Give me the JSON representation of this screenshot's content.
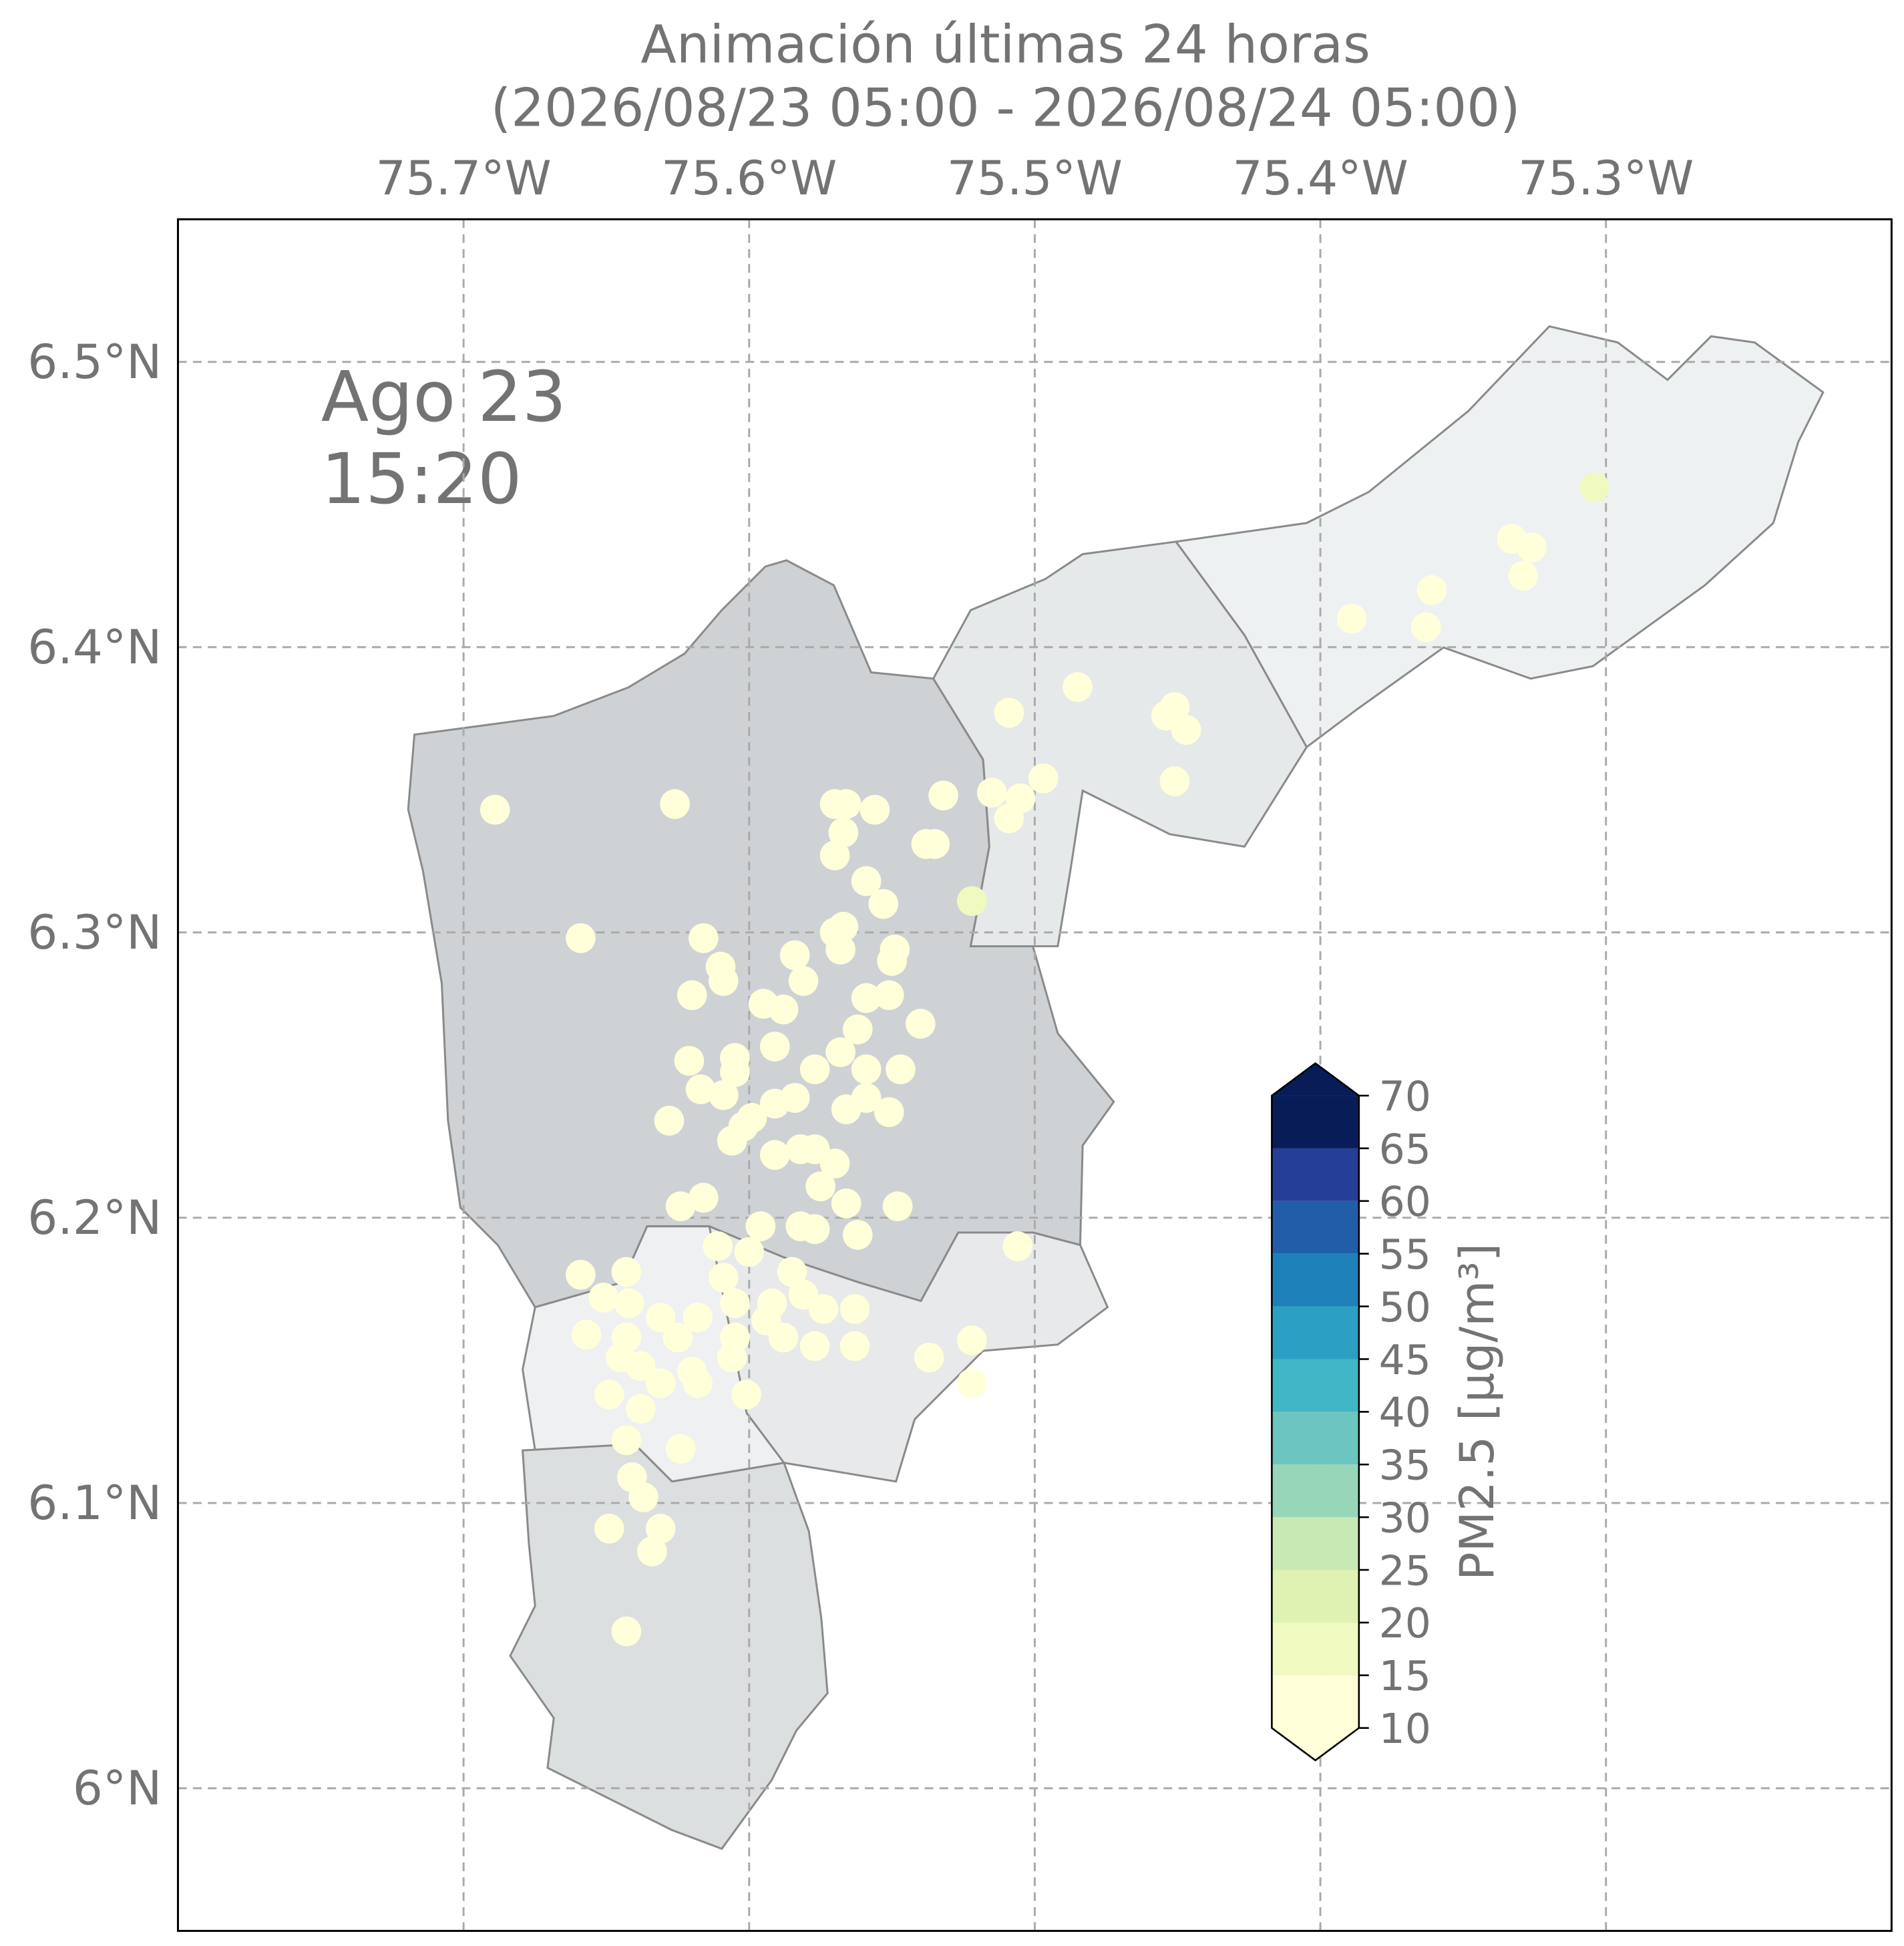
{
  "chart_data": {
    "type": "scatter",
    "title": "Animación últimas 24 horas",
    "subtitle": "(2026/08/23 05:00 - 2026/08/24 05:00)",
    "annotation": [
      "Ago 23",
      "15:20"
    ],
    "xlim": [
      -75.8,
      -75.2
    ],
    "ylim": [
      5.95,
      6.55
    ],
    "xticks": [
      {
        "value": -75.7,
        "label": "75.7°W"
      },
      {
        "value": -75.6,
        "label": "75.6°W"
      },
      {
        "value": -75.5,
        "label": "75.5°W"
      },
      {
        "value": -75.4,
        "label": "75.4°W"
      },
      {
        "value": -75.3,
        "label": "75.3°W"
      }
    ],
    "yticks": [
      {
        "value": 6.0,
        "label": "6°N"
      },
      {
        "value": 6.1,
        "label": "6.1°N"
      },
      {
        "value": 6.2,
        "label": "6.2°N"
      },
      {
        "value": 6.3,
        "label": "6.3°N"
      },
      {
        "value": 6.4,
        "label": "6.4°N"
      },
      {
        "value": 6.5,
        "label": "6.5°N"
      }
    ],
    "grid": true,
    "x": [
      -75.689,
      -75.626,
      -75.659,
      -75.57,
      -75.566,
      -75.556,
      -75.567,
      -75.57,
      -75.532,
      -75.538,
      -75.535,
      -75.515,
      -75.509,
      -75.505,
      -75.497,
      -75.509,
      -75.485,
      -75.522,
      -75.451,
      -75.454,
      -75.447,
      -75.451,
      -75.389,
      -75.363,
      -75.361,
      -75.333,
      -75.326,
      -75.329,
      -75.304,
      -75.559,
      -75.553,
      -75.57,
      -75.567,
      -75.568,
      -75.549,
      -75.55,
      -75.616,
      -75.61,
      -75.609,
      -75.62,
      -75.584,
      -75.581,
      -75.595,
      -75.588,
      -75.559,
      -75.551,
      -75.54,
      -75.562,
      -75.591,
      -75.605,
      -75.621,
      -75.605,
      -75.577,
      -75.568,
      -75.559,
      -75.547,
      -75.617,
      -75.609,
      -75.591,
      -75.584,
      -75.566,
      -75.559,
      -75.551,
      -75.628,
      -75.602,
      -75.599,
      -75.606,
      -75.591,
      -75.582,
      -75.577,
      -75.57,
      -75.575,
      -75.566,
      -75.548,
      -75.616,
      -75.624,
      -75.596,
      -75.582,
      -75.577,
      -75.562,
      -75.611,
      -75.6,
      -75.506,
      -75.659,
      -75.643,
      -75.609,
      -75.585,
      -75.651,
      -75.642,
      -75.605,
      -75.592,
      -75.581,
      -75.574,
      -75.563,
      -75.631,
      -75.618,
      -75.594,
      -75.657,
      -75.643,
      -75.625,
      -75.605,
      -75.588,
      -75.577,
      -75.563,
      -75.645,
      -75.638,
      -75.62,
      -75.606,
      -75.537,
      -75.522,
      -75.649,
      -75.631,
      -75.618,
      -75.601,
      -75.638,
      -75.522,
      -75.643,
      -75.624,
      -75.641,
      -75.637,
      -75.649,
      -75.631,
      -75.634,
      -75.643
    ],
    "y": [
      6.343,
      6.345,
      6.298,
      6.345,
      6.345,
      6.343,
      6.335,
      6.327,
      6.348,
      6.331,
      6.331,
      6.349,
      6.34,
      6.347,
      6.354,
      6.377,
      6.386,
      6.311,
      6.379,
      6.376,
      6.371,
      6.353,
      6.41,
      6.407,
      6.42,
      6.438,
      6.435,
      6.425,
      6.456,
      6.318,
      6.31,
      6.3,
      6.302,
      6.294,
      6.294,
      6.29,
      6.298,
      6.288,
      6.283,
      6.278,
      6.292,
      6.283,
      6.275,
      6.273,
      6.277,
      6.278,
      6.268,
      6.266,
      6.26,
      6.256,
      6.255,
      6.251,
      6.252,
      6.258,
      6.252,
      6.252,
      6.245,
      6.243,
      6.24,
      6.242,
      6.238,
      6.242,
      6.237,
      6.234,
      6.232,
      6.235,
      6.227,
      6.222,
      6.224,
      6.224,
      6.219,
      6.211,
      6.205,
      6.204,
      6.207,
      6.204,
      6.197,
      6.197,
      6.196,
      6.194,
      6.19,
      6.188,
      6.19,
      6.18,
      6.181,
      6.179,
      6.181,
      6.172,
      6.17,
      6.17,
      6.17,
      6.173,
      6.168,
      6.168,
      6.165,
      6.165,
      6.164,
      6.159,
      6.158,
      6.158,
      6.158,
      6.158,
      6.155,
      6.155,
      6.151,
      6.148,
      6.146,
      6.151,
      6.151,
      6.157,
      6.138,
      6.142,
      6.142,
      6.138,
      6.133,
      6.142,
      6.122,
      6.119,
      6.109,
      6.102,
      6.091,
      6.091,
      6.083,
      6.055
    ],
    "values": [
      12,
      12,
      12,
      12,
      12,
      12,
      12,
      12,
      12,
      12,
      12,
      12,
      12,
      12,
      12,
      12,
      12,
      17,
      12,
      12,
      12,
      12,
      12,
      12,
      12,
      12,
      12,
      12,
      17,
      12,
      12,
      12,
      12,
      12,
      12,
      12,
      12,
      12,
      12,
      12,
      12,
      12,
      12,
      12,
      12,
      12,
      12,
      12,
      12,
      12,
      12,
      12,
      12,
      12,
      12,
      12,
      12,
      12,
      12,
      12,
      12,
      12,
      12,
      12,
      12,
      12,
      12,
      12,
      12,
      12,
      12,
      12,
      12,
      12,
      12,
      12,
      12,
      12,
      12,
      12,
      12,
      12,
      12,
      12,
      12,
      12,
      12,
      12,
      12,
      12,
      12,
      12,
      12,
      12,
      12,
      12,
      12,
      12,
      12,
      12,
      12,
      12,
      12,
      12,
      12,
      12,
      12,
      12,
      12,
      12,
      12,
      12,
      12,
      12,
      12,
      12,
      12,
      12,
      12,
      12,
      12,
      12,
      12,
      12
    ],
    "colorbar": {
      "label": "PM2.5 [μg/m³]",
      "ticks": [
        10,
        15,
        20,
        25,
        30,
        35,
        40,
        45,
        50,
        55,
        60,
        65,
        70
      ],
      "colors": [
        "#ffffd9",
        "#f0f9bf",
        "#dff2b2",
        "#c7e9b4",
        "#98d6b9",
        "#6cc5be",
        "#41b6c4",
        "#2ba0c2",
        "#1d80b9",
        "#225ea8",
        "#253e97",
        "#081d58"
      ],
      "under_color": "#ffffd9",
      "over_color": "#081d58"
    }
  }
}
